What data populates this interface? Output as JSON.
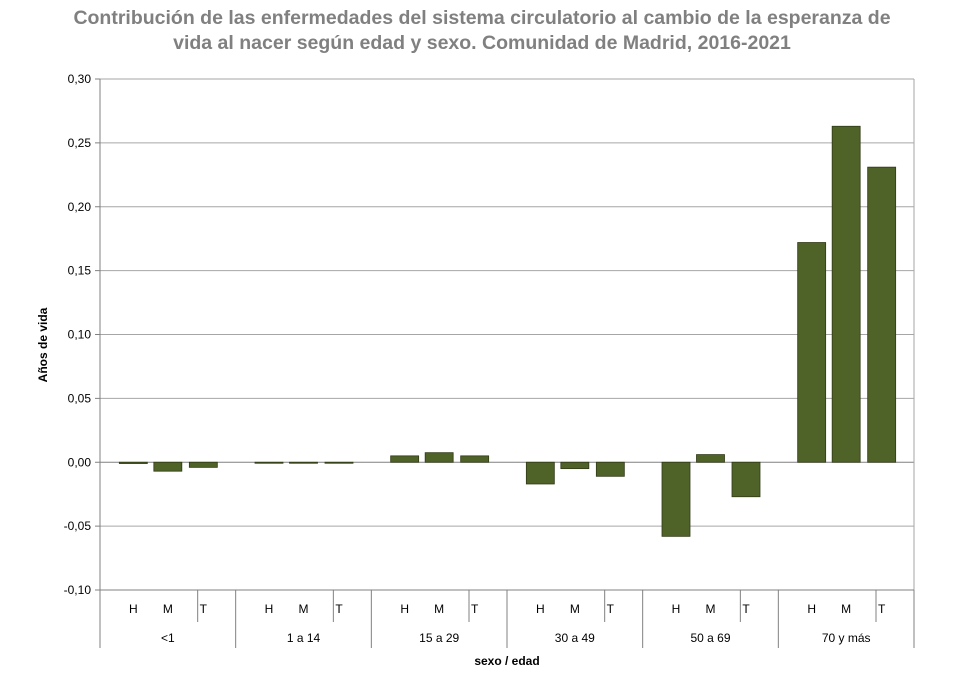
{
  "chart_data": {
    "type": "bar",
    "title_line1": "Contribución de las enfermedades del sistema circulatorio al cambio de la esperanza de",
    "title_line2": "vida al nacer según edad y sexo. Comunidad de Madrid, 2016-2021",
    "ylabel": "Años de vida",
    "xlabel": "sexo / edad",
    "ylim": [
      -0.1,
      0.3
    ],
    "yticks": [
      0.3,
      0.25,
      0.2,
      0.15,
      0.1,
      0.05,
      0.0,
      -0.05,
      -0.1
    ],
    "ytick_labels": [
      "0,30",
      "0,25",
      "0,20",
      "0,15",
      "0,10",
      "0,05",
      "0,00",
      "-0,05",
      "-0,10"
    ],
    "grid": true,
    "bar_color": "#4f6228",
    "groups": [
      {
        "label": "<1",
        "sexes": [
          "H",
          "M",
          "T"
        ],
        "values": [
          -0.001,
          -0.007,
          -0.004
        ]
      },
      {
        "label": "1 a 14",
        "sexes": [
          "H",
          "M",
          "T"
        ],
        "values": [
          0.0,
          -0.0005,
          -0.0005
        ]
      },
      {
        "label": "15 a 29",
        "sexes": [
          "H",
          "M",
          "T"
        ],
        "values": [
          0.005,
          0.0075,
          0.005
        ]
      },
      {
        "label": "30 a 49",
        "sexes": [
          "H",
          "M",
          "T"
        ],
        "values": [
          -0.017,
          -0.005,
          -0.011
        ]
      },
      {
        "label": "50 a 69",
        "sexes": [
          "H",
          "M",
          "T"
        ],
        "values": [
          -0.058,
          0.006,
          -0.027
        ]
      },
      {
        "label": "70 y más",
        "sexes": [
          "H",
          "M",
          "T"
        ],
        "values": [
          0.172,
          0.263,
          0.231
        ]
      }
    ]
  }
}
